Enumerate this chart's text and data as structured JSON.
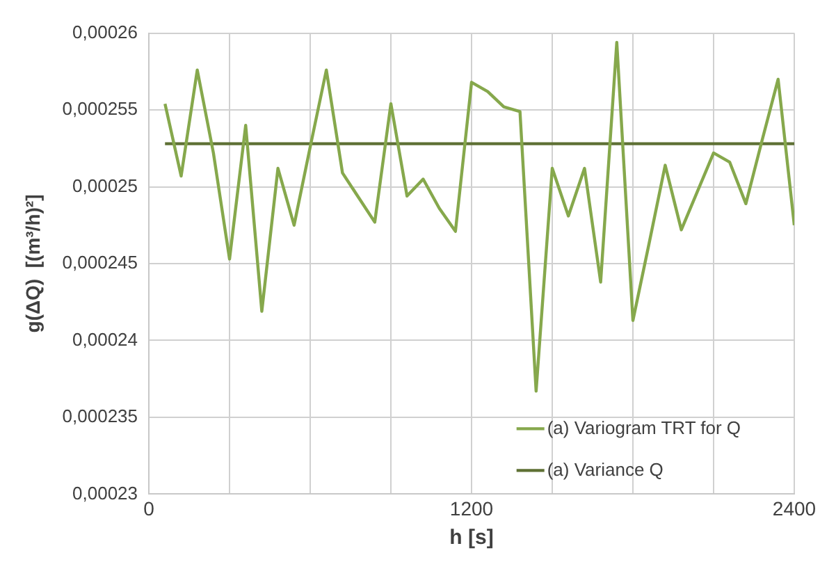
{
  "chart_data": {
    "type": "line",
    "xlabel": "h [s]",
    "ylabel": "g(ΔQ)  [(m³/h)²]",
    "xlim": [
      0,
      2400
    ],
    "xticks": [
      0,
      {
        "value": 300,
        "label": null
      },
      {
        "value": 600,
        "label": null
      },
      {
        "value": 900,
        "label": null
      },
      1200,
      {
        "value": 1500,
        "label": null
      },
      {
        "value": 1800,
        "label": null
      },
      {
        "value": 2100,
        "label": null
      },
      2400
    ],
    "ylim": [
      0.00023,
      0.00026
    ],
    "yticks": [
      {
        "value": 0.00023,
        "label": "0,00023"
      },
      {
        "value": 0.000235,
        "label": "0,000235"
      },
      {
        "value": 0.00024,
        "label": "0,00024"
      },
      {
        "value": 0.000245,
        "label": "0,000245"
      },
      {
        "value": 0.00025,
        "label": "0,00025"
      },
      {
        "value": 0.000255,
        "label": "0,000255"
      },
      {
        "value": 0.00026,
        "label": "0,00026"
      }
    ],
    "grid": true,
    "legend": "bottom right",
    "marker": "none",
    "series": [
      {
        "name": "(a) Variogram TRT for Q",
        "color": "#86a84c",
        "x": [
          60,
          120,
          180,
          240,
          300,
          360,
          420,
          480,
          540,
          600,
          660,
          720,
          780,
          840,
          900,
          960,
          1020,
          1080,
          1140,
          1200,
          1260,
          1320,
          1380,
          1440,
          1500,
          1560,
          1620,
          1680,
          1740,
          1800,
          1860,
          1920,
          1980,
          2040,
          2100,
          2160,
          2220,
          2280,
          2340,
          2400
        ],
        "values": [
          0.0002554,
          0.0002507,
          0.0002576,
          0.0002522,
          0.0002453,
          0.000254,
          0.0002419,
          0.0002512,
          0.0002475,
          0.0002526,
          0.0002576,
          0.0002509,
          0.0002493,
          0.0002477,
          0.0002554,
          0.0002494,
          0.0002505,
          0.0002486,
          0.0002471,
          0.0002568,
          0.0002562,
          0.0002552,
          0.0002549,
          0.0002367,
          0.0002512,
          0.0002481,
          0.0002512,
          0.0002438,
          0.0002594,
          0.0002413,
          0.0002463,
          0.0002514,
          0.0002472,
          0.0002497,
          0.0002522,
          0.0002516,
          0.0002489,
          0.000253,
          0.000257,
          0.0002475
        ]
      },
      {
        "name": "(a) Variance Q",
        "color": "#5e7034",
        "x": [
          60,
          2400
        ],
        "values": [
          0.0002528,
          0.0002528
        ]
      }
    ]
  }
}
